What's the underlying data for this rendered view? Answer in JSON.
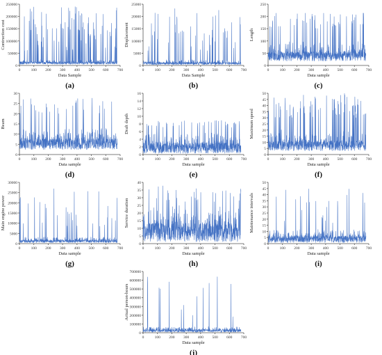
{
  "chart_data": [
    {
      "panel": "(a)",
      "type": "line",
      "xlabel": "Data Sample",
      "ylabel": "Contruction cost",
      "xlim": [
        0,
        700
      ],
      "ylim": [
        0,
        250000
      ],
      "xticks": [
        0,
        100,
        200,
        300,
        400,
        500,
        600,
        700
      ],
      "yticks": [
        0,
        50000,
        100000,
        150000,
        200000,
        250000
      ],
      "series": [
        {
          "baseline": 15000,
          "noise": 18000,
          "spike_prob": 0.12,
          "spike_min": 60000,
          "spike_max": 240000,
          "seed": 11
        }
      ]
    },
    {
      "panel": "(b)",
      "type": "line",
      "xlabel": "Data Sample",
      "ylabel": "Displacement",
      "xlim": [
        0,
        700
      ],
      "ylim": [
        0,
        25000
      ],
      "xticks": [
        0,
        100,
        200,
        300,
        400,
        500,
        600,
        700
      ],
      "yticks": [
        0,
        5000,
        10000,
        15000,
        20000,
        25000
      ],
      "series": [
        {
          "baseline": 1000,
          "noise": 1800,
          "spike_prob": 0.05,
          "spike_min": 6000,
          "spike_max": 23500,
          "seed": 22
        }
      ]
    },
    {
      "panel": "(c)",
      "type": "line",
      "xlabel": "Data sample",
      "ylabel": "Length",
      "xlim": [
        0,
        700
      ],
      "ylim": [
        0,
        250
      ],
      "xticks": [
        0,
        100,
        200,
        300,
        400,
        500,
        600,
        700
      ],
      "yticks": [
        0,
        50,
        100,
        150,
        200,
        250
      ],
      "series": [
        {
          "baseline": 60,
          "noise": 70,
          "spike_prob": 0.08,
          "spike_min": 150,
          "spike_max": 215,
          "seed": 33
        }
      ]
    },
    {
      "panel": "(d)",
      "type": "line",
      "xlabel": "Data sample",
      "ylabel": "Beam",
      "xlim": [
        0,
        700
      ],
      "ylim": [
        0,
        30
      ],
      "xticks": [
        0,
        100,
        200,
        300,
        400,
        500,
        600,
        700
      ],
      "yticks": [
        0,
        5,
        10,
        15,
        20,
        25,
        30
      ],
      "series": [
        {
          "baseline": 8,
          "noise": 10,
          "spike_prob": 0.06,
          "spike_min": 20,
          "spike_max": 28,
          "seed": 44
        }
      ]
    },
    {
      "panel": "(e)",
      "type": "line",
      "xlabel": "Data sample",
      "ylabel": "Draft depth",
      "xlim": [
        0,
        700
      ],
      "ylim": [
        0,
        16
      ],
      "xticks": [
        0,
        100,
        200,
        300,
        400,
        500,
        600,
        700
      ],
      "yticks": [
        0,
        2,
        4,
        6,
        8,
        10,
        12,
        14,
        16
      ],
      "series": [
        {
          "baseline": 1,
          "noise": 5,
          "spike_prob": 0.05,
          "spike_min": 7,
          "spike_max": 9,
          "seed": 55
        }
      ]
    },
    {
      "panel": "(f)",
      "type": "line",
      "xlabel": "Data sample",
      "ylabel": "Maximum speed",
      "xlim": [
        0,
        700
      ],
      "ylim": [
        0,
        50
      ],
      "xticks": [
        0,
        100,
        200,
        300,
        400,
        500,
        600,
        700
      ],
      "yticks": [
        0,
        5,
        10,
        15,
        20,
        25,
        30,
        35,
        40,
        45,
        50
      ],
      "series": [
        {
          "baseline": 10,
          "noise": 15,
          "spike_prob": 0.1,
          "spike_min": 30,
          "spike_max": 50,
          "seed": 66
        }
      ]
    },
    {
      "panel": "(g)",
      "type": "line",
      "xlabel": "Data sample",
      "ylabel": "Main engine power",
      "xlim": [
        0,
        700
      ],
      "ylim": [
        0,
        30000
      ],
      "xticks": [
        0,
        100,
        200,
        300,
        400,
        500,
        600,
        700
      ],
      "yticks": [
        0,
        5000,
        10000,
        15000,
        20000,
        25000,
        30000
      ],
      "series": [
        {
          "baseline": 1500,
          "noise": 2500,
          "spike_prob": 0.05,
          "spike_min": 8000,
          "spike_max": 27000,
          "seed": 77
        }
      ]
    },
    {
      "panel": "(h)",
      "type": "line",
      "xlabel": "Data sample",
      "ylabel": "Service duration",
      "xlim": [
        0,
        700
      ],
      "ylim": [
        0,
        40
      ],
      "xticks": [
        0,
        100,
        200,
        300,
        400,
        500,
        600,
        700
      ],
      "yticks": [
        0,
        5,
        10,
        15,
        20,
        25,
        30,
        35,
        40
      ],
      "series": [
        {
          "baseline": 4,
          "noise": 22,
          "spike_prob": 0.05,
          "spike_min": 27,
          "spike_max": 38,
          "seed": 88
        }
      ]
    },
    {
      "panel": "(i)",
      "type": "line",
      "xlabel": "Data sample",
      "ylabel": "Maintenance intervals",
      "xlim": [
        0,
        700
      ],
      "ylim": [
        0,
        50
      ],
      "xticks": [
        0,
        100,
        200,
        300,
        400,
        500,
        600,
        700
      ],
      "yticks": [
        0,
        5,
        10,
        15,
        20,
        25,
        30,
        35,
        40,
        45,
        50
      ],
      "series": [
        {
          "baseline": 3,
          "noise": 10,
          "spike_prob": 0.04,
          "spike_min": 15,
          "spike_max": 48,
          "seed": 99
        }
      ]
    },
    {
      "panel": "(j)",
      "type": "line",
      "xlabel": "Data sample",
      "ylabel": "Actual person-hours",
      "xlim": [
        0,
        700
      ],
      "ylim": [
        0,
        700000
      ],
      "xticks": [
        0,
        100,
        200,
        300,
        400,
        500,
        600,
        700
      ],
      "yticks": [
        0,
        100000,
        200000,
        300000,
        400000,
        500000,
        600000,
        700000
      ],
      "series": [
        {
          "baseline": 20000,
          "noise": 60000,
          "spike_prob": 0.03,
          "spike_min": 150000,
          "spike_max": 680000,
          "seed": 111
        }
      ]
    }
  ]
}
